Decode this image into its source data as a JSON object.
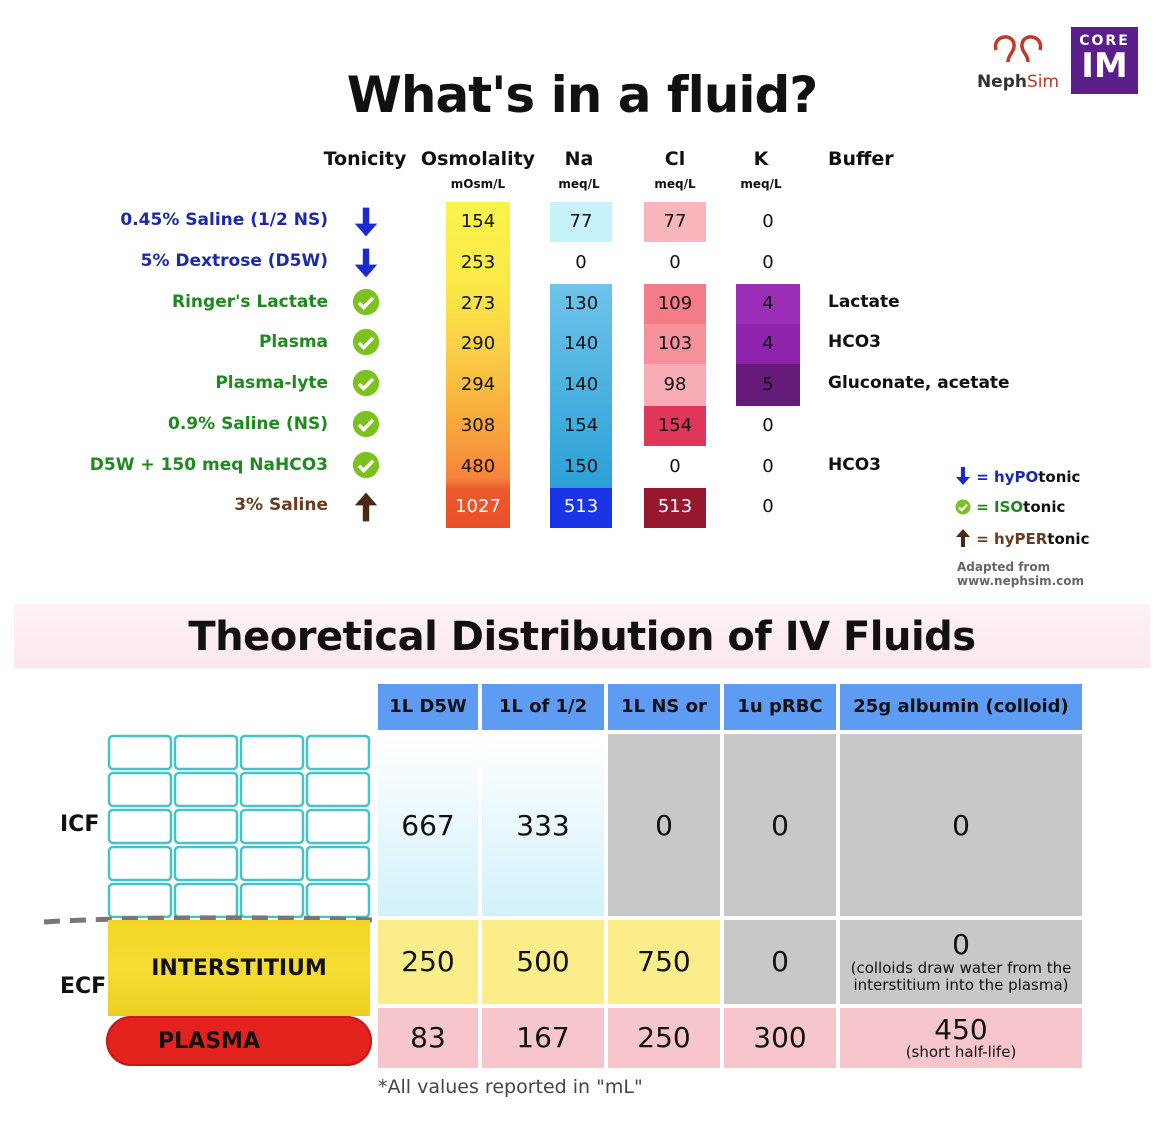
{
  "title": "What's in a fluid?",
  "logos": {
    "nephsim_prefix": "Neph",
    "nephsim_suffix": "Sim",
    "coreim_top": "CORE",
    "coreim_bottom": "IM"
  },
  "fluid_table": {
    "headers": {
      "tonicity": "Tonicity",
      "osmolality": "Osmolality",
      "osmolality_unit": "mOsm/L",
      "na": "Na",
      "na_unit": "meq/L",
      "cl": "Cl",
      "cl_unit": "meq/L",
      "k": "K",
      "k_unit": "meq/L",
      "buffer": "Buffer"
    },
    "rows": [
      {
        "label": "0.45% Saline (1/2 NS)",
        "tonicity": "hypo",
        "osm": "154",
        "na": "77",
        "cl": "77",
        "k": "0",
        "buffer": ""
      },
      {
        "label": "5% Dextrose (D5W)",
        "tonicity": "hypo",
        "osm": "253",
        "na": "0",
        "cl": "0",
        "k": "0",
        "buffer": ""
      },
      {
        "label": "Ringer's Lactate",
        "tonicity": "iso",
        "osm": "273",
        "na": "130",
        "cl": "109",
        "k": "4",
        "buffer": "Lactate"
      },
      {
        "label": "Plasma",
        "tonicity": "iso",
        "osm": "290",
        "na": "140",
        "cl": "103",
        "k": "4",
        "buffer": "HCO3"
      },
      {
        "label": "Plasma-lyte",
        "tonicity": "iso",
        "osm": "294",
        "na": "140",
        "cl": "98",
        "k": "5",
        "buffer": "Gluconate, acetate"
      },
      {
        "label": "0.9% Saline (NS)",
        "tonicity": "iso",
        "osm": "308",
        "na": "154",
        "cl": "154",
        "k": "0",
        "buffer": ""
      },
      {
        "label": "D5W + 150 meq NaHCO3",
        "tonicity": "iso",
        "osm": "480",
        "na": "150",
        "cl": "0",
        "k": "0",
        "buffer": "HCO3"
      },
      {
        "label": "3% Saline",
        "tonicity": "hyper",
        "osm": "1027",
        "na": "513",
        "cl": "513",
        "k": "0",
        "buffer": ""
      }
    ],
    "colors": {
      "hypo_label": "#1a2aa8",
      "iso_label": "#1e8a1e",
      "hyper_label": "#6b3a1f",
      "hypo_arrow": "#1a2ad0",
      "iso_check": "#7cc21e",
      "hyper_arrow": "#4a2a12"
    }
  },
  "legend": {
    "hypo_prefix": "= hyP",
    "hypo_caps": "O",
    "hypo_suffix": "tonic",
    "iso_prefix": "= ",
    "iso_caps": "ISO",
    "iso_suffix": "tonic",
    "hyper_prefix": "= hyP",
    "hyper_caps": "ER",
    "hyper_suffix": "tonic",
    "source_line1": "Adapted from",
    "source_line2": "www.nephsim.com"
  },
  "distribution": {
    "title": "Theoretical Distribution of IV Fluids",
    "columns": [
      "1L D5W",
      "1L of 1/2 NS",
      "1L NS or LR",
      "1u pRBC",
      "25g albumin (colloid)"
    ],
    "rows": {
      "icf": {
        "label": "ICF",
        "values": [
          "667",
          "333",
          "0",
          "0",
          "0"
        ]
      },
      "interstitium": {
        "label": "INTERSTITIUM",
        "values": [
          "250",
          "500",
          "750",
          "0",
          "0"
        ],
        "note": "(colloids draw water from the interstitium into the plasma)"
      },
      "plasma": {
        "label": "PLASMA",
        "values": [
          "83",
          "167",
          "250",
          "300",
          "450"
        ],
        "note": "(short half-life)"
      }
    },
    "ecf_label": "ECF",
    "footnote": "*All values reported in \"mL\""
  }
}
